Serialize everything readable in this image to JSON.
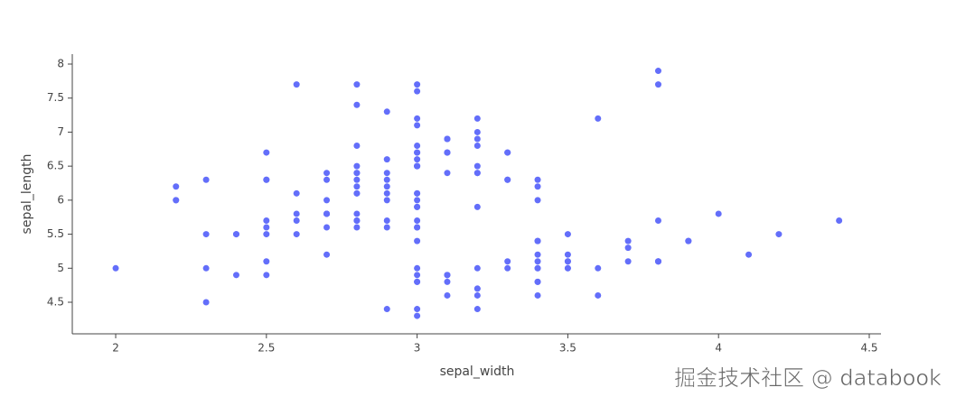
{
  "chart_data": {
    "type": "scatter",
    "xlabel": "sepal_width",
    "ylabel": "sepal_length",
    "x": [
      3.5,
      3,
      3.2,
      3.1,
      3.6,
      3.9,
      3.4,
      3.4,
      2.9,
      3.1,
      3.7,
      3.4,
      3,
      3,
      4,
      4.4,
      3.9,
      3.5,
      3.8,
      3.8,
      3.4,
      3.7,
      3.6,
      3.3,
      3.4,
      3,
      3.4,
      3.5,
      3.4,
      3.2,
      3.1,
      3.4,
      4.1,
      4.2,
      3.1,
      3.2,
      3.5,
      3.1,
      3,
      3.4,
      3.5,
      2.3,
      3.2,
      3.5,
      3.8,
      3,
      3.8,
      3.2,
      3.7,
      3.3,
      3.2,
      3.2,
      3.1,
      2.3,
      2.8,
      2.8,
      3.3,
      2.4,
      2.9,
      2.7,
      2,
      3,
      2.2,
      2.9,
      2.9,
      3.1,
      3,
      2.7,
      2.2,
      2.5,
      3.2,
      2.8,
      2.5,
      2.8,
      2.9,
      3,
      2.8,
      3,
      2.9,
      2.6,
      2.4,
      2.4,
      2.7,
      2.7,
      3,
      3.4,
      3.1,
      2.3,
      3,
      2.5,
      2.6,
      3,
      2.6,
      2.3,
      2.7,
      3,
      2.9,
      2.9,
      2.5,
      2.8,
      3.3,
      2.7,
      3,
      2.9,
      3,
      3,
      2.5,
      2.9,
      2.5,
      3.6,
      3.2,
      2.7,
      3,
      2.5,
      2.8,
      3.2,
      3,
      3.8,
      2.6,
      2.2,
      3.2,
      2.8,
      2.8,
      2.7,
      3.3,
      3.2,
      2.8,
      3,
      2.8,
      3,
      2.8,
      3.8,
      2.8,
      2.8,
      2.6,
      3,
      3.4,
      3.1,
      3,
      3.1,
      3.1,
      3.1,
      2.7,
      3.2,
      3.3,
      3,
      2.5,
      3,
      3.4,
      3
    ],
    "values": [
      5.1,
      4.9,
      4.7,
      4.6,
      5,
      5.4,
      4.6,
      5,
      4.4,
      4.9,
      5.4,
      4.8,
      4.8,
      4.3,
      5.8,
      5.7,
      5.4,
      5.1,
      5.7,
      5.1,
      5.4,
      5.1,
      4.6,
      5.1,
      4.8,
      5,
      5,
      5.2,
      5.2,
      4.7,
      4.8,
      5.4,
      5.2,
      5.5,
      4.9,
      5,
      5.5,
      4.9,
      4.4,
      5.1,
      5,
      4.5,
      4.4,
      5,
      5.1,
      4.8,
      5.1,
      4.6,
      5.3,
      5,
      7,
      6.4,
      6.9,
      5.5,
      6.5,
      5.7,
      6.3,
      4.9,
      6.6,
      5.2,
      5,
      5.9,
      6,
      6.1,
      5.6,
      6.7,
      5.6,
      5.8,
      6.2,
      5.6,
      5.9,
      6.1,
      6.3,
      6.1,
      6.4,
      6.6,
      6.8,
      6.7,
      6,
      5.7,
      5.5,
      5.5,
      5.8,
      6,
      5.4,
      6,
      6.7,
      6.3,
      5.6,
      5.5,
      5.5,
      6.1,
      5.8,
      5,
      5.6,
      5.7,
      5.7,
      6.2,
      5.1,
      5.7,
      6.3,
      5.8,
      7.1,
      6.3,
      6.5,
      7.6,
      4.9,
      7.3,
      6.7,
      7.2,
      6.5,
      6.4,
      6.8,
      5.7,
      5.8,
      6.4,
      6.5,
      7.7,
      7.7,
      6,
      6.9,
      5.6,
      7.7,
      6.3,
      6.7,
      7.2,
      6.2,
      6.1,
      6.4,
      7.2,
      7.4,
      7.9,
      6.4,
      6.3,
      6.1,
      7.7,
      6.3,
      6.4,
      6,
      6.9,
      6.7,
      6.9,
      5.8,
      6.8,
      6.7,
      6.7,
      6.3,
      6.5,
      6.2,
      5.9
    ],
    "color": "#636efa",
    "xlim": [
      1.856,
      4.539
    ],
    "xticks": [
      2,
      2.5,
      3,
      3.5,
      4,
      4.5
    ],
    "ylim": [
      4.036,
      8.146
    ],
    "yticks": [
      4.5,
      5,
      5.5,
      6,
      6.5,
      7,
      7.5,
      8
    ],
    "grid": false,
    "watermark": "掘金技术社区 @ databook"
  }
}
